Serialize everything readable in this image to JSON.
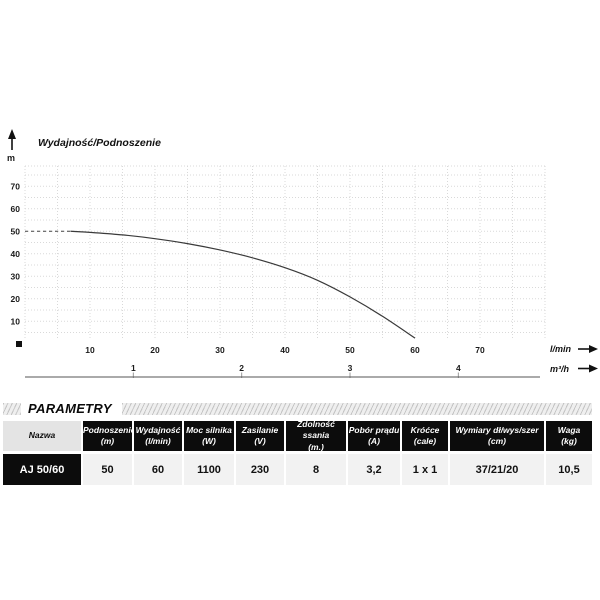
{
  "chart_data": {
    "type": "line",
    "title": "Wydajność/Podnoszenie",
    "y_axis": {
      "label": "m",
      "ticks": [
        10,
        20,
        30,
        40,
        50,
        60,
        70
      ],
      "range": [
        0,
        79
      ]
    },
    "x_axis": {
      "label": "l/min",
      "ticks": [
        10,
        20,
        30,
        40,
        50,
        60,
        70
      ],
      "range": [
        0,
        80
      ]
    },
    "x_axis_secondary": {
      "label": "m³/h",
      "ticks": [
        1,
        2,
        3,
        4
      ],
      "lmin_per_unit": 16.667
    },
    "grid": {
      "step": 5,
      "style": "dotted"
    },
    "colors": {
      "curve": "#3a3a3a",
      "grid": "#d9d9d9",
      "axis_text": "#1a1a1a"
    },
    "icons": {
      "y_axis": "up-arrow-icon",
      "x_axis": "right-arrow-icon",
      "origin": "origin-square-marker"
    },
    "series": [
      {
        "name": "AJ 50/60",
        "dashed_segment_lmin_m": [
          [
            0,
            50
          ],
          [
            7,
            50
          ]
        ],
        "points_lmin_m": [
          [
            7,
            50
          ],
          [
            10,
            49.5
          ],
          [
            15,
            48.4
          ],
          [
            20,
            46.7
          ],
          [
            25,
            44.5
          ],
          [
            30,
            41.7
          ],
          [
            35,
            38.2
          ],
          [
            40,
            33.8
          ],
          [
            45,
            28.2
          ],
          [
            50,
            20.8
          ],
          [
            55,
            12.2
          ],
          [
            60,
            2.5
          ]
        ]
      }
    ]
  },
  "parameters": {
    "section_title": "PARAMETRY",
    "table": {
      "columns": [
        {
          "label": "Nazwa",
          "unit": ""
        },
        {
          "label": "Podnoszenie",
          "unit": "(m)"
        },
        {
          "label": "Wydajność",
          "unit": "(l/min)"
        },
        {
          "label": "Moc silnika",
          "unit": "(W)"
        },
        {
          "label": "Zasilanie",
          "unit": "(V)"
        },
        {
          "label": "Zdolność ssania",
          "unit": "(m.)"
        },
        {
          "label": "Pobór prądu",
          "unit": "(A)"
        },
        {
          "label": "Króćce",
          "unit": "(cale)"
        },
        {
          "label": "Wymiary dł/wys/szer",
          "unit": "(cm)"
        },
        {
          "label": "Waga",
          "unit": "(kg)"
        }
      ],
      "rows": [
        {
          "values": [
            "AJ 50/60",
            "50",
            "60",
            "1100",
            "230",
            "8",
            "3,2",
            "1 x 1",
            "37/21/20",
            "10,5"
          ]
        }
      ]
    }
  }
}
